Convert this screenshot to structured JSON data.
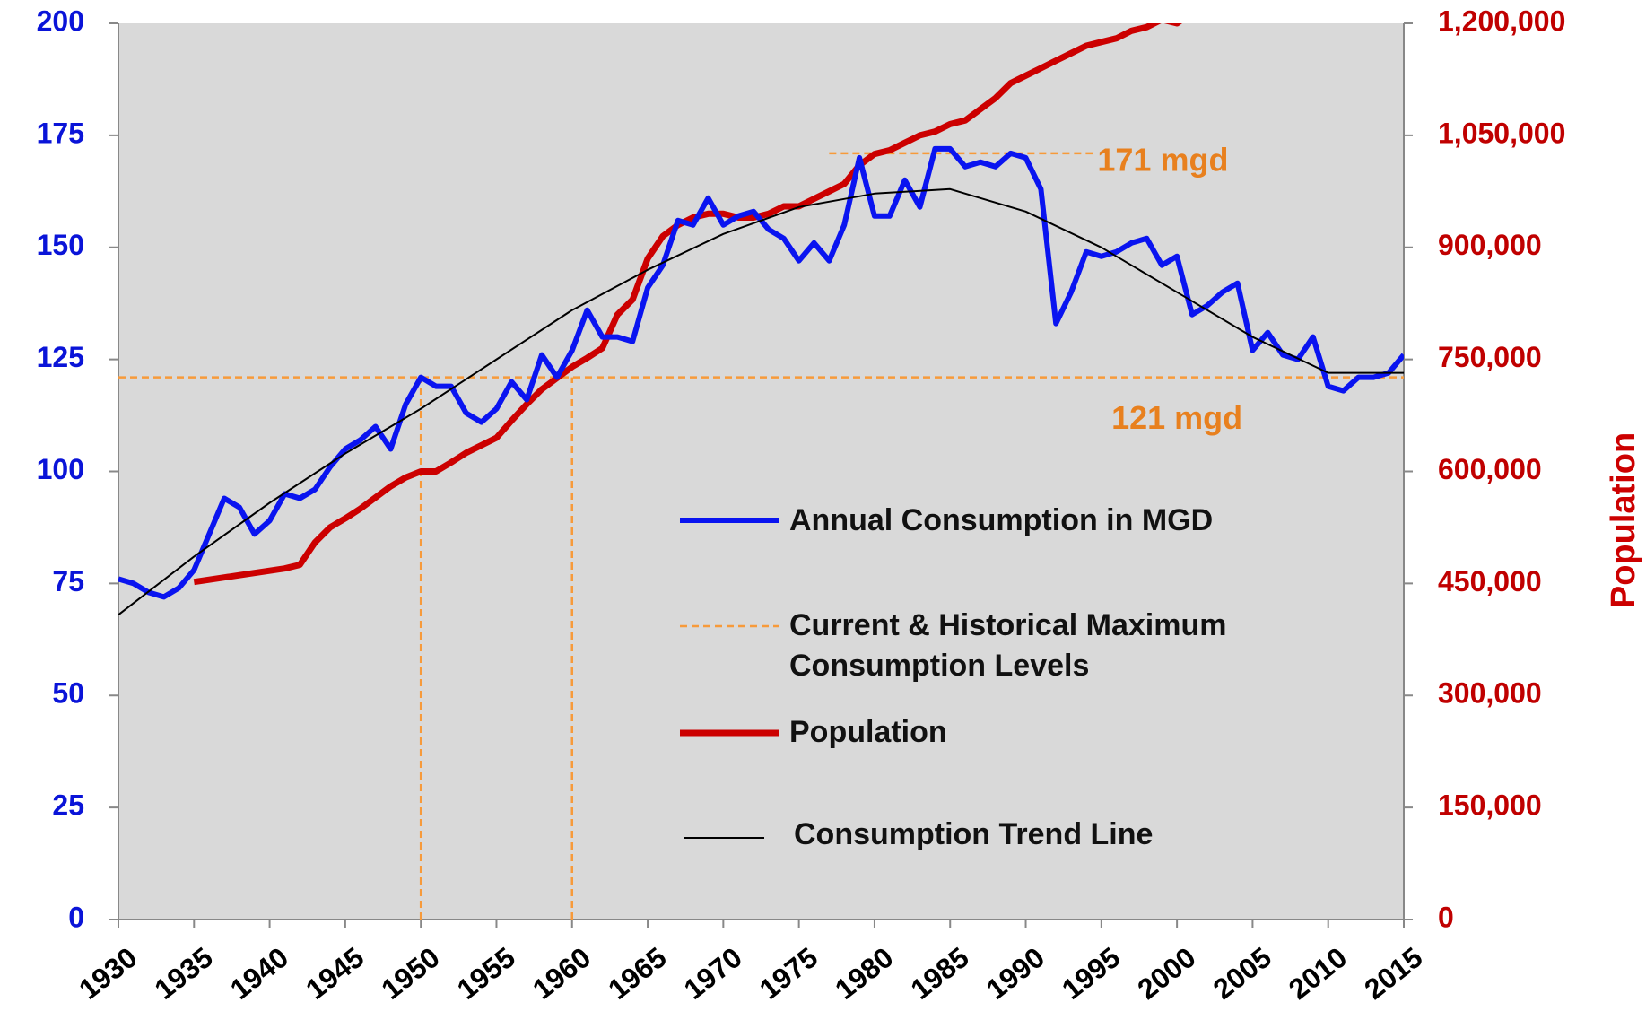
{
  "chart_data": {
    "type": "line",
    "y2label": "Population",
    "xlim": [
      1930,
      2015
    ],
    "xticks": [
      1930,
      1935,
      1940,
      1945,
      1950,
      1955,
      1960,
      1965,
      1970,
      1975,
      1980,
      1985,
      1990,
      1995,
      2000,
      2005,
      2010,
      2015
    ],
    "ylim": [
      0,
      200
    ],
    "yticks": [
      0,
      25,
      50,
      75,
      100,
      125,
      150,
      175,
      200
    ],
    "y2lim": [
      0,
      1200000
    ],
    "y2ticks": [
      0,
      {
        "value": 150000,
        "label": "150,000"
      },
      {
        "value": 300000,
        "label": "300,000"
      },
      {
        "value": 450000,
        "label": "450,000"
      },
      {
        "value": 600000,
        "label": "600,000"
      },
      {
        "value": 750000,
        "label": "750,000"
      },
      {
        "value": 900000,
        "label": "900,000"
      },
      {
        "value": 1050000,
        "label": "1,050,000"
      },
      {
        "value": 1200000,
        "label": "1,200,000"
      }
    ],
    "grid": false,
    "series": [
      {
        "name": "Annual Consumption in MGD",
        "color": "#0a14f0",
        "width": 6,
        "x": [
          1930,
          1931,
          1932,
          1933,
          1934,
          1935,
          1936,
          1937,
          1938,
          1939,
          1940,
          1941,
          1942,
          1943,
          1944,
          1945,
          1946,
          1947,
          1948,
          1949,
          1950,
          1951,
          1952,
          1953,
          1954,
          1955,
          1956,
          1957,
          1958,
          1959,
          1960,
          1961,
          1962,
          1963,
          1964,
          1965,
          1966,
          1967,
          1968,
          1969,
          1970,
          1971,
          1972,
          1973,
          1974,
          1975,
          1976,
          1977,
          1978,
          1979,
          1980,
          1981,
          1982,
          1983,
          1984,
          1985,
          1986,
          1987,
          1988,
          1989,
          1990,
          1991,
          1992,
          1993,
          1994,
          1995,
          1996,
          1997,
          1998,
          1999,
          2000,
          2001,
          2002,
          2003,
          2004,
          2005,
          2006,
          2007,
          2008,
          2009,
          2010,
          2011,
          2012,
          2013,
          2014,
          2015
        ],
        "values": [
          76,
          75,
          73,
          72,
          74,
          78,
          86,
          94,
          92,
          86,
          89,
          95,
          94,
          96,
          101,
          105,
          107,
          110,
          105,
          115,
          121,
          119,
          119,
          113,
          111,
          114,
          120,
          116,
          126,
          121,
          127,
          136,
          130,
          130,
          129,
          141,
          146,
          156,
          155,
          161,
          155,
          157,
          158,
          154,
          152,
          147,
          151,
          147,
          155,
          170,
          157,
          157,
          165,
          159,
          172,
          172,
          168,
          169,
          168,
          171,
          170,
          163,
          133,
          140,
          149,
          148,
          149,
          151,
          152,
          146,
          148,
          135,
          137,
          140,
          142,
          127,
          131,
          126,
          125,
          130,
          119,
          118,
          121,
          121,
          122,
          126
        ]
      },
      {
        "name": "Population",
        "color": "#cc0000",
        "width": 7,
        "axis": "y2",
        "x": [
          1935,
          1936,
          1937,
          1938,
          1939,
          1940,
          1941,
          1942,
          1943,
          1944,
          1945,
          1946,
          1947,
          1948,
          1949,
          1950,
          1951,
          1952,
          1953,
          1954,
          1955,
          1956,
          1957,
          1958,
          1959,
          1960,
          1961,
          1962,
          1963,
          1964,
          1965,
          1966,
          1967,
          1968,
          1969,
          1970,
          1971,
          1972,
          1973,
          1974,
          1975,
          1976,
          1977,
          1978,
          1979,
          1980,
          1981,
          1982,
          1983,
          1984,
          1985,
          1986,
          1987,
          1988,
          1989,
          1990,
          1991,
          1992,
          1993,
          1994,
          1995,
          1996,
          1997,
          1998,
          1999,
          2000,
          2001,
          2002,
          2003,
          2004,
          2005
        ],
        "values": [
          452000,
          455000,
          458000,
          461000,
          464000,
          467000,
          470000,
          475000,
          505000,
          525000,
          537000,
          550000,
          565000,
          580000,
          592000,
          600000,
          600000,
          612000,
          625000,
          635000,
          645000,
          668000,
          690000,
          710000,
          725000,
          740000,
          752000,
          765000,
          810000,
          830000,
          885000,
          915000,
          930000,
          940000,
          945000,
          945000,
          940000,
          940000,
          945000,
          955000,
          955000,
          965000,
          975000,
          985000,
          1010000,
          1025000,
          1030000,
          1040000,
          1050000,
          1055000,
          1065000,
          1070000,
          1085000,
          1100000,
          1120000,
          1130000,
          1140000,
          1150000,
          1160000,
          1170000,
          1175000,
          1180000,
          1190000,
          1195000,
          1205000,
          1200000,
          1215000,
          1220000,
          1225000,
          1235000,
          1260000
        ]
      },
      {
        "name": "Consumption Trend Line",
        "color": "#000000",
        "width": 2,
        "x": [
          1930,
          1935,
          1940,
          1945,
          1950,
          1955,
          1960,
          1965,
          1970,
          1975,
          1980,
          1985,
          1990,
          1995,
          2000,
          2005,
          2010,
          2015
        ],
        "values": [
          68,
          81,
          93,
          104,
          114,
          125,
          136,
          145,
          153,
          159,
          162,
          163,
          158,
          150,
          140,
          130,
          122,
          122
        ]
      }
    ],
    "reference_lines": {
      "name": "Current & Historical Maximum Consumption Levels",
      "color": "#f79a3a",
      "lines": [
        {
          "value": 171,
          "label": "171 mgd",
          "x_range": [
            1977,
            1994.5
          ]
        },
        {
          "value": 121,
          "label": "121 mgd",
          "x_range": [
            1930,
            2015
          ]
        }
      ],
      "vertical": [
        {
          "x": 1950,
          "y_range": [
            0,
            121
          ]
        },
        {
          "x": 1960,
          "y_range": [
            0,
            121
          ]
        }
      ]
    }
  }
}
